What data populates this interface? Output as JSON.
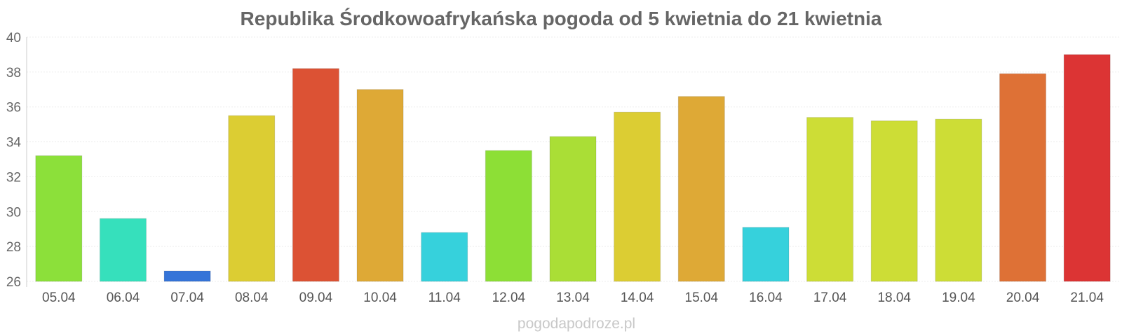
{
  "chart_data": {
    "type": "bar",
    "title": "Republika Środkowoafrykańska pogoda od 5 kwietnia do 21 kwietnia",
    "xlabel": "",
    "ylabel": "",
    "ylim": [
      26,
      40
    ],
    "yticks": [
      26,
      28,
      30,
      32,
      34,
      36,
      38,
      40
    ],
    "ytick_labels": [
      "26",
      "28",
      "30",
      "32",
      "34",
      "36",
      "38",
      "40"
    ],
    "grid": true,
    "categories": [
      "05.04",
      "06.04",
      "07.04",
      "08.04",
      "09.04",
      "10.04",
      "11.04",
      "12.04",
      "13.04",
      "14.04",
      "15.04",
      "16.04",
      "17.04",
      "18.04",
      "19.04",
      "20.04",
      "21.04"
    ],
    "values": [
      33.2,
      29.6,
      26.6,
      35.5,
      38.2,
      37.0,
      28.8,
      33.5,
      34.3,
      35.7,
      36.6,
      29.1,
      35.4,
      35.2,
      35.3,
      37.9,
      39.0
    ],
    "colors": [
      "#8ce03a",
      "#36e0bc",
      "#3574d8",
      "#dccd33",
      "#dc5234",
      "#dea936",
      "#36d1dc",
      "#8ddf36",
      "#aade36",
      "#dccd33",
      "#dea936",
      "#36d1dc",
      "#cddd36",
      "#cddd36",
      "#cddd36",
      "#de7136",
      "#dc3434"
    ]
  },
  "watermark": "pogodapodroze.pl"
}
